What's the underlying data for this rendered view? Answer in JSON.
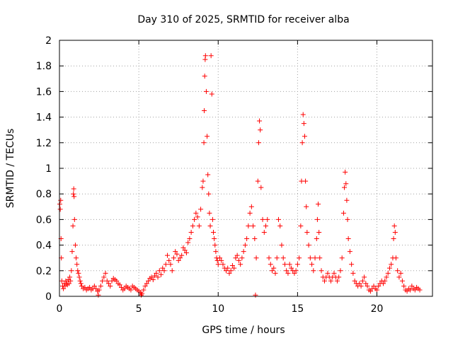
{
  "chart_data": {
    "type": "scatter",
    "title": "Day 310 of 2025, SRMTID for receiver alba",
    "xlabel": "GPS time / hours",
    "ylabel": "SRMTID / TECUs",
    "xlim": [
      0,
      23.5
    ],
    "ylim": [
      0,
      2
    ],
    "x_ticks": [
      0,
      5,
      10,
      15,
      20
    ],
    "x_tick_labels": [
      "0",
      "5",
      "10",
      "15",
      "20"
    ],
    "y_ticks": [
      0,
      0.2,
      0.4,
      0.6,
      0.8,
      1,
      1.2,
      1.4,
      1.6,
      1.8,
      2
    ],
    "y_tick_labels": [
      "0",
      "0.2",
      "0.4",
      "0.6",
      "0.8",
      "1",
      "1.2",
      "1.4",
      "1.6",
      "1.8",
      "2"
    ],
    "grid": true,
    "marker": "plus",
    "color": "#ff0000",
    "series": [
      {
        "name": "SRMTID",
        "points": [
          [
            0.02,
            0.72
          ],
          [
            0.05,
            0.68
          ],
          [
            0.08,
            0.75
          ],
          [
            0.1,
            0.45
          ],
          [
            0.12,
            0.3
          ],
          [
            0.15,
            0.12
          ],
          [
            0.2,
            0.08
          ],
          [
            0.25,
            0.06
          ],
          [
            0.3,
            0.1
          ],
          [
            0.35,
            0.08
          ],
          [
            0.4,
            0.12
          ],
          [
            0.45,
            0.1
          ],
          [
            0.5,
            0.09
          ],
          [
            0.55,
            0.13
          ],
          [
            0.6,
            0.1
          ],
          [
            0.65,
            0.15
          ],
          [
            0.7,
            0.12
          ],
          [
            0.75,
            0.2
          ],
          [
            0.8,
            0.35
          ],
          [
            0.85,
            0.55
          ],
          [
            0.88,
            0.8
          ],
          [
            0.9,
            0.84
          ],
          [
            0.92,
            0.78
          ],
          [
            0.95,
            0.6
          ],
          [
            1.0,
            0.4
          ],
          [
            1.05,
            0.3
          ],
          [
            1.1,
            0.25
          ],
          [
            1.15,
            0.2
          ],
          [
            1.2,
            0.18
          ],
          [
            1.25,
            0.15
          ],
          [
            1.3,
            0.12
          ],
          [
            1.35,
            0.1
          ],
          [
            1.4,
            0.08
          ],
          [
            1.5,
            0.06
          ],
          [
            1.6,
            0.07
          ],
          [
            1.7,
            0.05
          ],
          [
            1.8,
            0.06
          ],
          [
            1.9,
            0.07
          ],
          [
            2.0,
            0.05
          ],
          [
            2.1,
            0.06
          ],
          [
            2.2,
            0.08
          ],
          [
            2.3,
            0.06
          ],
          [
            2.4,
            0.04
          ],
          [
            2.45,
            0.01
          ],
          [
            2.5,
            0.05
          ],
          [
            2.6,
            0.08
          ],
          [
            2.7,
            0.12
          ],
          [
            2.8,
            0.15
          ],
          [
            2.9,
            0.18
          ],
          [
            3.0,
            0.12
          ],
          [
            3.1,
            0.1
          ],
          [
            3.2,
            0.08
          ],
          [
            3.3,
            0.12
          ],
          [
            3.4,
            0.14
          ],
          [
            3.5,
            0.13
          ],
          [
            3.6,
            0.12
          ],
          [
            3.7,
            0.1
          ],
          [
            3.8,
            0.09
          ],
          [
            3.9,
            0.07
          ],
          [
            4.0,
            0.05
          ],
          [
            4.1,
            0.06
          ],
          [
            4.2,
            0.08
          ],
          [
            4.3,
            0.07
          ],
          [
            4.4,
            0.06
          ],
          [
            4.5,
            0.05
          ],
          [
            4.6,
            0.08
          ],
          [
            4.7,
            0.07
          ],
          [
            4.8,
            0.06
          ],
          [
            4.9,
            0.05
          ],
          [
            5.0,
            0.04
          ],
          [
            5.1,
            0.03
          ],
          [
            5.15,
            0.01
          ],
          [
            5.2,
            0.02
          ],
          [
            5.3,
            0.05
          ],
          [
            5.4,
            0.08
          ],
          [
            5.5,
            0.1
          ],
          [
            5.6,
            0.12
          ],
          [
            5.7,
            0.14
          ],
          [
            5.8,
            0.15
          ],
          [
            5.9,
            0.13
          ],
          [
            6.0,
            0.16
          ],
          [
            6.1,
            0.18
          ],
          [
            6.2,
            0.15
          ],
          [
            6.3,
            0.2
          ],
          [
            6.4,
            0.17
          ],
          [
            6.5,
            0.22
          ],
          [
            6.6,
            0.2
          ],
          [
            6.7,
            0.25
          ],
          [
            6.8,
            0.32
          ],
          [
            6.9,
            0.28
          ],
          [
            7.0,
            0.25
          ],
          [
            7.1,
            0.2
          ],
          [
            7.2,
            0.3
          ],
          [
            7.3,
            0.35
          ],
          [
            7.4,
            0.33
          ],
          [
            7.5,
            0.28
          ],
          [
            7.6,
            0.3
          ],
          [
            7.7,
            0.32
          ],
          [
            7.8,
            0.38
          ],
          [
            7.9,
            0.36
          ],
          [
            8.0,
            0.34
          ],
          [
            8.1,
            0.42
          ],
          [
            8.2,
            0.45
          ],
          [
            8.3,
            0.5
          ],
          [
            8.4,
            0.55
          ],
          [
            8.5,
            0.6
          ],
          [
            8.6,
            0.65
          ],
          [
            8.7,
            0.62
          ],
          [
            8.8,
            0.55
          ],
          [
            8.9,
            0.68
          ],
          [
            9.0,
            0.85
          ],
          [
            9.05,
            0.9
          ],
          [
            9.1,
            1.2
          ],
          [
            9.12,
            1.45
          ],
          [
            9.15,
            1.72
          ],
          [
            9.18,
            1.85
          ],
          [
            9.2,
            1.88
          ],
          [
            9.25,
            1.6
          ],
          [
            9.3,
            1.25
          ],
          [
            9.35,
            0.95
          ],
          [
            9.4,
            0.8
          ],
          [
            9.45,
            0.65
          ],
          [
            9.5,
            0.55
          ],
          [
            9.55,
            1.88
          ],
          [
            9.6,
            1.58
          ],
          [
            9.65,
            0.6
          ],
          [
            9.7,
            0.5
          ],
          [
            9.75,
            0.45
          ],
          [
            9.8,
            0.4
          ],
          [
            9.85,
            0.35
          ],
          [
            9.9,
            0.3
          ],
          [
            9.95,
            0.28
          ],
          [
            10.0,
            0.25
          ],
          [
            10.1,
            0.3
          ],
          [
            10.2,
            0.28
          ],
          [
            10.3,
            0.25
          ],
          [
            10.4,
            0.22
          ],
          [
            10.5,
            0.2
          ],
          [
            10.6,
            0.22
          ],
          [
            10.7,
            0.18
          ],
          [
            10.8,
            0.2
          ],
          [
            10.9,
            0.24
          ],
          [
            11.0,
            0.22
          ],
          [
            11.1,
            0.3
          ],
          [
            11.2,
            0.32
          ],
          [
            11.3,
            0.28
          ],
          [
            11.4,
            0.25
          ],
          [
            11.5,
            0.3
          ],
          [
            11.6,
            0.35
          ],
          [
            11.7,
            0.4
          ],
          [
            11.8,
            0.45
          ],
          [
            11.9,
            0.55
          ],
          [
            12.0,
            0.65
          ],
          [
            12.1,
            0.7
          ],
          [
            12.2,
            0.55
          ],
          [
            12.3,
            0.45
          ],
          [
            12.35,
            0.01
          ],
          [
            12.4,
            0.3
          ],
          [
            12.5,
            0.9
          ],
          [
            12.55,
            1.2
          ],
          [
            12.6,
            1.37
          ],
          [
            12.65,
            1.3
          ],
          [
            12.7,
            0.85
          ],
          [
            12.8,
            0.6
          ],
          [
            12.9,
            0.5
          ],
          [
            13.0,
            0.55
          ],
          [
            13.1,
            0.6
          ],
          [
            13.2,
            0.3
          ],
          [
            13.3,
            0.25
          ],
          [
            13.4,
            0.2
          ],
          [
            13.5,
            0.22
          ],
          [
            13.6,
            0.18
          ],
          [
            13.7,
            0.3
          ],
          [
            13.8,
            0.6
          ],
          [
            13.9,
            0.55
          ],
          [
            14.0,
            0.4
          ],
          [
            14.1,
            0.3
          ],
          [
            14.2,
            0.25
          ],
          [
            14.3,
            0.2
          ],
          [
            14.4,
            0.18
          ],
          [
            14.5,
            0.25
          ],
          [
            14.6,
            0.22
          ],
          [
            14.7,
            0.2
          ],
          [
            14.8,
            0.18
          ],
          [
            14.9,
            0.2
          ],
          [
            15.0,
            0.25
          ],
          [
            15.1,
            0.3
          ],
          [
            15.2,
            0.55
          ],
          [
            15.25,
            0.9
          ],
          [
            15.3,
            1.2
          ],
          [
            15.35,
            1.42
          ],
          [
            15.4,
            1.35
          ],
          [
            15.45,
            1.25
          ],
          [
            15.5,
            0.9
          ],
          [
            15.55,
            0.7
          ],
          [
            15.6,
            0.5
          ],
          [
            15.7,
            0.4
          ],
          [
            15.8,
            0.3
          ],
          [
            15.9,
            0.25
          ],
          [
            16.0,
            0.2
          ],
          [
            16.1,
            0.3
          ],
          [
            16.2,
            0.45
          ],
          [
            16.25,
            0.6
          ],
          [
            16.3,
            0.72
          ],
          [
            16.35,
            0.5
          ],
          [
            16.4,
            0.3
          ],
          [
            16.5,
            0.2
          ],
          [
            16.6,
            0.15
          ],
          [
            16.7,
            0.12
          ],
          [
            16.8,
            0.15
          ],
          [
            16.9,
            0.18
          ],
          [
            17.0,
            0.15
          ],
          [
            17.1,
            0.12
          ],
          [
            17.2,
            0.15
          ],
          [
            17.3,
            0.18
          ],
          [
            17.4,
            0.15
          ],
          [
            17.5,
            0.12
          ],
          [
            17.6,
            0.15
          ],
          [
            17.7,
            0.2
          ],
          [
            17.8,
            0.3
          ],
          [
            17.9,
            0.65
          ],
          [
            17.95,
            0.85
          ],
          [
            18.0,
            0.97
          ],
          [
            18.05,
            0.88
          ],
          [
            18.1,
            0.75
          ],
          [
            18.15,
            0.6
          ],
          [
            18.2,
            0.45
          ],
          [
            18.3,
            0.35
          ],
          [
            18.4,
            0.25
          ],
          [
            18.5,
            0.18
          ],
          [
            18.6,
            0.12
          ],
          [
            18.7,
            0.1
          ],
          [
            18.8,
            0.08
          ],
          [
            18.9,
            0.1
          ],
          [
            19.0,
            0.08
          ],
          [
            19.1,
            0.12
          ],
          [
            19.2,
            0.15
          ],
          [
            19.3,
            0.1
          ],
          [
            19.4,
            0.08
          ],
          [
            19.5,
            0.05
          ],
          [
            19.6,
            0.04
          ],
          [
            19.7,
            0.06
          ],
          [
            19.8,
            0.08
          ],
          [
            19.9,
            0.06
          ],
          [
            20.0,
            0.05
          ],
          [
            20.1,
            0.08
          ],
          [
            20.2,
            0.1
          ],
          [
            20.3,
            0.12
          ],
          [
            20.4,
            0.1
          ],
          [
            20.5,
            0.12
          ],
          [
            20.6,
            0.15
          ],
          [
            20.7,
            0.18
          ],
          [
            20.8,
            0.22
          ],
          [
            20.9,
            0.25
          ],
          [
            21.0,
            0.3
          ],
          [
            21.05,
            0.45
          ],
          [
            21.1,
            0.55
          ],
          [
            21.15,
            0.5
          ],
          [
            21.2,
            0.3
          ],
          [
            21.3,
            0.2
          ],
          [
            21.4,
            0.15
          ],
          [
            21.5,
            0.18
          ],
          [
            21.6,
            0.12
          ],
          [
            21.7,
            0.08
          ],
          [
            21.8,
            0.05
          ],
          [
            21.9,
            0.04
          ],
          [
            22.0,
            0.06
          ],
          [
            22.1,
            0.05
          ],
          [
            22.2,
            0.08
          ],
          [
            22.3,
            0.06
          ],
          [
            22.4,
            0.05
          ],
          [
            22.5,
            0.07
          ],
          [
            22.6,
            0.06
          ],
          [
            22.7,
            0.05
          ]
        ]
      }
    ]
  }
}
